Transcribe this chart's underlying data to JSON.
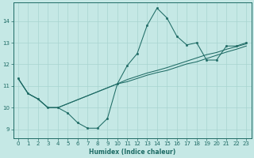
{
  "xlabel": "Humidex (Indice chaleur)",
  "bg_color": "#c5e8e5",
  "grid_color": "#a8d4d0",
  "line_color": "#1e6b65",
  "xlim": [
    -0.5,
    23.5
  ],
  "ylim": [
    8.6,
    14.85
  ],
  "xticks": [
    0,
    1,
    2,
    3,
    4,
    5,
    6,
    7,
    8,
    9,
    10,
    11,
    12,
    13,
    14,
    15,
    16,
    17,
    18,
    19,
    20,
    21,
    22,
    23
  ],
  "yticks": [
    9,
    10,
    11,
    12,
    13,
    14
  ],
  "curve_x": [
    0,
    1,
    2,
    3,
    4,
    5,
    6,
    7,
    8,
    9,
    10,
    11,
    12,
    13,
    14,
    15,
    16,
    17,
    18,
    19,
    20,
    21,
    22,
    23
  ],
  "curve_y": [
    11.35,
    10.65,
    10.4,
    10.0,
    10.0,
    9.75,
    9.3,
    9.05,
    9.05,
    9.5,
    11.1,
    11.95,
    12.5,
    13.8,
    14.6,
    14.15,
    13.3,
    12.9,
    13.0,
    12.2,
    12.2,
    12.85,
    12.85,
    13.0
  ],
  "diag1_x": [
    0,
    1,
    2,
    3,
    4,
    10,
    11,
    12,
    13,
    14,
    15,
    16,
    17,
    18,
    19,
    20,
    21,
    22,
    23
  ],
  "diag1_y": [
    11.35,
    10.65,
    10.4,
    10.0,
    10.0,
    11.1,
    11.3,
    11.45,
    11.6,
    11.72,
    11.85,
    12.0,
    12.15,
    12.3,
    12.45,
    12.55,
    12.7,
    12.82,
    12.95
  ],
  "diag2_x": [
    0,
    1,
    2,
    3,
    4,
    10,
    11,
    12,
    13,
    14,
    15,
    16,
    17,
    18,
    19,
    20,
    21,
    22,
    23
  ],
  "diag2_y": [
    11.35,
    10.65,
    10.4,
    10.0,
    10.0,
    11.1,
    11.2,
    11.35,
    11.5,
    11.62,
    11.72,
    11.87,
    12.02,
    12.12,
    12.27,
    12.42,
    12.57,
    12.7,
    12.85
  ]
}
